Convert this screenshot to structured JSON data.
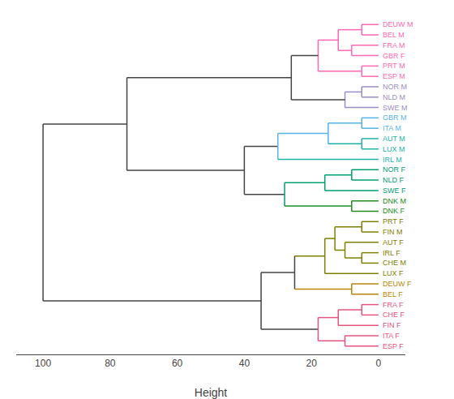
{
  "chart_data": {
    "type": "dendrogram",
    "xlabel": "Height",
    "xlim": [
      108,
      -8
    ],
    "xticks": [
      100,
      80,
      60,
      40,
      20,
      0
    ],
    "grid": false,
    "tick_labels": "x",
    "leaves": [
      {
        "name": "DEUW M",
        "color": "#FF69B4"
      },
      {
        "name": "BEL M",
        "color": "#FF69B4"
      },
      {
        "name": "FRA M",
        "color": "#FF69B4"
      },
      {
        "name": "GBR F",
        "color": "#FF69B4"
      },
      {
        "name": "PRT M",
        "color": "#FF69B4"
      },
      {
        "name": "ESP M",
        "color": "#FF69B4"
      },
      {
        "name": "NOR M",
        "color": "#9B8EC4"
      },
      {
        "name": "NLD M",
        "color": "#9B8EC4"
      },
      {
        "name": "SWE M",
        "color": "#9B8EC4"
      },
      {
        "name": "GBR M",
        "color": "#56B4E9"
      },
      {
        "name": "ITA M",
        "color": "#56B4E9"
      },
      {
        "name": "AUT M",
        "color": "#20B2AA"
      },
      {
        "name": "LUX M",
        "color": "#20B2AA"
      },
      {
        "name": "IRL M",
        "color": "#20B2AA"
      },
      {
        "name": "NOR F",
        "color": "#009E73"
      },
      {
        "name": "NLD F",
        "color": "#009E73"
      },
      {
        "name": "SWE F",
        "color": "#009E73"
      },
      {
        "name": "DNK M",
        "color": "#228B22"
      },
      {
        "name": "DNK F",
        "color": "#228B22"
      },
      {
        "name": "PRT F",
        "color": "#808000"
      },
      {
        "name": "FIN M",
        "color": "#808000"
      },
      {
        "name": "AUT F",
        "color": "#808000"
      },
      {
        "name": "IRL F",
        "color": "#808000"
      },
      {
        "name": "CHE M",
        "color": "#808000"
      },
      {
        "name": "LUX F",
        "color": "#808000"
      },
      {
        "name": "DEUW F",
        "color": "#B8860B"
      },
      {
        "name": "BEL F",
        "color": "#B8860B"
      },
      {
        "name": "FRA F",
        "color": "#E75480"
      },
      {
        "name": "CHE F",
        "color": "#E75480"
      },
      {
        "name": "FIN F",
        "color": "#E75480"
      },
      {
        "name": "ITA F",
        "color": "#E75480"
      },
      {
        "name": "ESP F",
        "color": "#E75480"
      }
    ],
    "merges": [
      {
        "left": "DEUW M",
        "right": "BEL M",
        "height": 5,
        "colors": [
          "#FF69B4",
          "#FF69B4",
          "#FF69B4"
        ]
      },
      {
        "left": "FRA M",
        "right": "GBR F",
        "height": 8,
        "colors": [
          "#FF69B4",
          "#FF69B4",
          "#FF69B4"
        ]
      },
      {
        "left": 0,
        "right": 1,
        "height": 12,
        "colors": [
          "#FF69B4",
          "#FF69B4",
          "#FF69B4"
        ]
      },
      {
        "left": "PRT M",
        "right": "ESP M",
        "height": 5,
        "colors": [
          "#FF69B4",
          "#FF69B4",
          "#FF69B4"
        ]
      },
      {
        "left": 2,
        "right": 3,
        "height": 18,
        "colors": [
          "#FF69B4",
          "#FF69B4",
          "#FF69B4"
        ]
      },
      {
        "left": "NOR M",
        "right": "NLD M",
        "height": 5,
        "colors": [
          "#9B8EC4",
          "#9B8EC4",
          "#9B8EC4"
        ]
      },
      {
        "left": 5,
        "right": "SWE M",
        "height": 10,
        "colors": [
          "#9B8EC4",
          "#9B8EC4",
          "#9B8EC4"
        ]
      },
      {
        "left": 4,
        "right": 6,
        "height": 26,
        "colors": [
          "#444444",
          "#444444",
          "#444444"
        ]
      },
      {
        "left": "GBR M",
        "right": "ITA M",
        "height": 5,
        "colors": [
          "#56B4E9",
          "#56B4E9",
          "#56B4E9"
        ]
      },
      {
        "left": "AUT M",
        "right": "LUX M",
        "height": 5,
        "colors": [
          "#20B2AA",
          "#20B2AA",
          "#20B2AA"
        ]
      },
      {
        "left": 8,
        "right": 9,
        "height": 15,
        "colors": [
          "#56B4E9",
          "#20B2AA",
          "#56B4E9"
        ]
      },
      {
        "left": 10,
        "right": "IRL M",
        "height": 30,
        "colors": [
          "#56B4E9",
          "#20B2AA",
          "#56B4E9"
        ]
      },
      {
        "left": "NOR F",
        "right": "NLD F",
        "height": 8,
        "colors": [
          "#009E73",
          "#009E73",
          "#009E73"
        ]
      },
      {
        "left": 12,
        "right": "SWE F",
        "height": 16,
        "colors": [
          "#009E73",
          "#009E73",
          "#009E73"
        ]
      },
      {
        "left": "DNK M",
        "right": "DNK F",
        "height": 8,
        "colors": [
          "#228B22",
          "#228B22",
          "#228B22"
        ]
      },
      {
        "left": 13,
        "right": 14,
        "height": 28,
        "colors": [
          "#009E73",
          "#228B22",
          "#009E73"
        ]
      },
      {
        "left": 11,
        "right": 15,
        "height": 40,
        "colors": [
          "#444444",
          "#444444",
          "#444444"
        ]
      },
      {
        "left": 7,
        "right": 16,
        "height": 75,
        "colors": [
          "#444444",
          "#444444",
          "#444444"
        ]
      },
      {
        "left": "PRT F",
        "right": "FIN M",
        "height": 5,
        "colors": [
          "#808000",
          "#808000",
          "#808000"
        ]
      },
      {
        "left": "IRL F",
        "right": "CHE M",
        "height": 5,
        "colors": [
          "#808000",
          "#808000",
          "#808000"
        ]
      },
      {
        "left": "AUT F",
        "right": 19,
        "height": 10,
        "colors": [
          "#808000",
          "#808000",
          "#808000"
        ]
      },
      {
        "left": 18,
        "right": 20,
        "height": 13,
        "colors": [
          "#808000",
          "#808000",
          "#808000"
        ]
      },
      {
        "left": 21,
        "right": "LUX F",
        "height": 16,
        "colors": [
          "#808000",
          "#808000",
          "#808000"
        ]
      },
      {
        "left": "DEUW F",
        "right": "BEL F",
        "height": 8,
        "colors": [
          "#B8860B",
          "#B8860B",
          "#B8860B"
        ]
      },
      {
        "left": 22,
        "right": 23,
        "height": 25,
        "colors": [
          "#808000",
          "#B8860B",
          "#444444"
        ]
      },
      {
        "left": "FRA F",
        "right": "CHE F",
        "height": 5,
        "colors": [
          "#E75480",
          "#E75480",
          "#E75480"
        ]
      },
      {
        "left": 25,
        "right": "FIN F",
        "height": 12,
        "colors": [
          "#E75480",
          "#E75480",
          "#E75480"
        ]
      },
      {
        "left": "ITA F",
        "right": "ESP F",
        "height": 10,
        "colors": [
          "#E75480",
          "#E75480",
          "#E75480"
        ]
      },
      {
        "left": 26,
        "right": 27,
        "height": 18,
        "colors": [
          "#E75480",
          "#E75480",
          "#E75480"
        ]
      },
      {
        "left": 24,
        "right": 28,
        "height": 35,
        "colors": [
          "#444444",
          "#444444",
          "#444444"
        ]
      },
      {
        "left": 17,
        "right": 29,
        "height": 100,
        "colors": [
          "#444444",
          "#444444",
          "#444444"
        ]
      }
    ]
  }
}
